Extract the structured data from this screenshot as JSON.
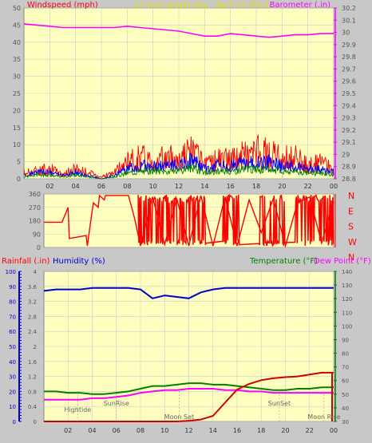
{
  "header": {
    "left_label": "Windspeed (mph)",
    "center_label": "24 hour graph day - April 22 2013",
    "right_label": "Barometer (.in)"
  },
  "colors": {
    "background": "#c8c8c8",
    "plot_bg": "#ffffc0",
    "wind": "#ff0000",
    "gust_blue": "#0000ff",
    "wind_green": "#008000",
    "barometer": "#ff00ff",
    "direction": "#ff0000",
    "rain": "#cc0000",
    "humidity": "#0000cc",
    "temperature": "#008000",
    "dewpoint": "#ff00ff"
  },
  "chart_data": [
    {
      "type": "line",
      "name_hint": "wind-barometer",
      "title": "24 hour graph day - April 22 2013",
      "ylabel_left": "Windspeed (mph)",
      "ylabel_right": "Barometer (.in)",
      "x_ticks": [
        "02",
        "04",
        "06",
        "08",
        "10",
        "12",
        "14",
        "16",
        "18",
        "20",
        "22",
        "00"
      ],
      "x_range": [
        0,
        24
      ],
      "y_left_range": [
        0,
        50
      ],
      "y_left_ticks": [
        0,
        5,
        10,
        15,
        20,
        25,
        30,
        35,
        40,
        45,
        50
      ],
      "y_right_range": [
        28.8,
        30.2
      ],
      "y_right_ticks": [
        "28.8",
        "28.9",
        "29",
        "29.1",
        "29.2",
        "29.3",
        "29.4",
        "29.5",
        "29.6",
        "29.7",
        "29.8",
        "29.9",
        "30",
        "30.1",
        "30.2"
      ],
      "barometer": {
        "x": [
          0,
          1,
          2,
          3,
          4,
          5,
          6,
          7,
          8,
          9,
          10,
          11,
          12,
          13,
          14,
          15,
          16,
          17,
          18,
          19,
          20,
          21,
          22,
          23,
          24
        ],
        "y": [
          30.07,
          30.06,
          30.05,
          30.04,
          30.04,
          30.04,
          30.04,
          30.04,
          30.05,
          30.04,
          30.03,
          30.02,
          30.01,
          29.99,
          29.97,
          29.97,
          29.99,
          29.98,
          29.97,
          29.96,
          29.97,
          29.98,
          29.98,
          29.99,
          29.99
        ]
      },
      "wind_gust_envelope": {
        "x": [
          0,
          1,
          2,
          3,
          4,
          5,
          6,
          7,
          8,
          9,
          10,
          11,
          12,
          13,
          14,
          15,
          16,
          17,
          18,
          19,
          20,
          21,
          22,
          23,
          24
        ],
        "y": [
          3,
          4,
          5,
          2,
          5,
          3,
          1,
          3,
          8,
          11,
          9,
          10,
          10,
          14,
          6,
          10,
          9,
          12,
          13,
          12,
          10,
          11,
          6,
          8,
          4
        ]
      },
      "wind_avg": {
        "x": [
          0,
          1,
          2,
          3,
          4,
          5,
          6,
          7,
          8,
          9,
          10,
          11,
          12,
          13,
          14,
          15,
          16,
          17,
          18,
          19,
          20,
          21,
          22,
          23,
          24
        ],
        "y": [
          1,
          2,
          2,
          1,
          2,
          1,
          0,
          1,
          3,
          4,
          4,
          4,
          4,
          6,
          3,
          4,
          4,
          5,
          5,
          5,
          4,
          4,
          3,
          3,
          2
        ]
      }
    },
    {
      "type": "line",
      "name_hint": "wind-direction",
      "y_range": [
        0,
        360
      ],
      "y_ticks": [
        0,
        90,
        180,
        270,
        360
      ],
      "right_labels": [
        "N",
        "W",
        "S",
        "E",
        "N"
      ],
      "x_range": [
        0,
        24
      ],
      "direction": {
        "x": [
          0,
          1.5,
          2.0,
          2.1,
          3.5,
          3.6,
          4.0,
          4.1,
          4.5,
          4.6,
          5.0,
          5.1,
          7.0,
          7.5,
          8.0,
          9.0,
          10.0,
          11.0,
          12.0,
          13.0,
          14.0,
          15.0,
          16.0,
          17.0,
          18.0,
          19.0,
          20.0,
          21.0,
          22.0,
          23.0,
          24.0
        ],
        "y": [
          170,
          170,
          270,
          60,
          80,
          10,
          250,
          300,
          270,
          350,
          320,
          350,
          350,
          200,
          10,
          340,
          20,
          330,
          10,
          350,
          10,
          340,
          10,
          320,
          100,
          330,
          10,
          300,
          340,
          30,
          310
        ]
      }
    },
    {
      "type": "line",
      "name_hint": "rain-humidity-temp",
      "ylabel_left1": "Rainfall (.in)",
      "ylabel_left2": "Humidity (%)",
      "ylabel_right1": "Temperature (°F)",
      "ylabel_right2": "Dew Point (°F)",
      "x_ticks": [
        "02",
        "04",
        "06",
        "08",
        "10",
        "12",
        "14",
        "16",
        "18",
        "20",
        "22",
        "00"
      ],
      "x_range": [
        0,
        24
      ],
      "rain_range": [
        0,
        4
      ],
      "rain_ticks": [
        "0",
        "0.4",
        "0.8",
        "1.2",
        "1.6",
        "2",
        "2.4",
        "2.8",
        "3.2",
        "3.6",
        "4"
      ],
      "humidity_range": [
        0,
        100
      ],
      "humidity_ticks": [
        0,
        10,
        20,
        30,
        40,
        50,
        60,
        70,
        80,
        90,
        100
      ],
      "temp_range": [
        30,
        140
      ],
      "temp_ticks": [
        30,
        40,
        50,
        60,
        70,
        80,
        90,
        100,
        110,
        120,
        130,
        140
      ],
      "rainfall": {
        "x": [
          0,
          11,
          12,
          13,
          14,
          15,
          16,
          17,
          18,
          19,
          20,
          21,
          22,
          23,
          24
        ],
        "y": [
          0,
          0,
          0.02,
          0.05,
          0.15,
          0.5,
          0.85,
          1.0,
          1.1,
          1.15,
          1.18,
          1.2,
          1.25,
          1.3,
          1.3
        ]
      },
      "humidity": {
        "x": [
          0,
          1,
          2,
          3,
          4,
          5,
          6,
          7,
          8,
          9,
          10,
          11,
          12,
          13,
          14,
          15,
          16,
          17,
          18,
          19,
          20,
          21,
          22,
          23,
          24
        ],
        "y": [
          87,
          88,
          88,
          88,
          89,
          89,
          89,
          89,
          88,
          82,
          84,
          83,
          82,
          86,
          88,
          89,
          89,
          89,
          89,
          89,
          89,
          89,
          89,
          89,
          89
        ]
      },
      "temperature": {
        "x": [
          0,
          1,
          2,
          3,
          4,
          5,
          6,
          7,
          8,
          9,
          10,
          11,
          12,
          13,
          14,
          15,
          16,
          17,
          18,
          19,
          20,
          21,
          22,
          23,
          24
        ],
        "y": [
          52,
          52,
          51,
          51,
          50,
          50,
          51,
          52,
          54,
          56,
          56,
          57,
          58,
          58,
          57,
          57,
          56,
          55,
          54,
          53,
          53,
          54,
          54,
          55,
          55
        ]
      },
      "dewpoint": {
        "x": [
          0,
          1,
          2,
          3,
          4,
          5,
          6,
          7,
          8,
          9,
          10,
          11,
          12,
          13,
          14,
          15,
          16,
          17,
          18,
          19,
          20,
          21,
          22,
          23,
          24
        ],
        "y": [
          46,
          46,
          46,
          46,
          47,
          47,
          48,
          49,
          51,
          52,
          53,
          53,
          54,
          54,
          54,
          53,
          53,
          52,
          52,
          51,
          51,
          51,
          51,
          51,
          51
        ]
      },
      "annotations": [
        {
          "text": "Hightide",
          "x": 2.8
        },
        {
          "text": "SunRise",
          "x": 6.0
        },
        {
          "text": "Moon Set",
          "x": 11.2
        },
        {
          "text": "SunSet",
          "x": 19.5
        },
        {
          "text": "Moon Rise",
          "x": 23.2
        }
      ]
    }
  ]
}
